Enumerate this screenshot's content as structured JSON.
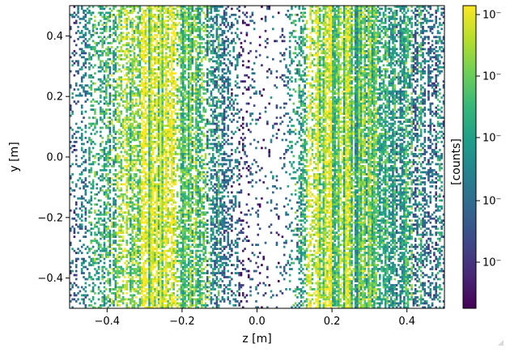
{
  "chart_data": {
    "type": "heatmap",
    "xlabel": "z [m]",
    "ylabel": "y [m]",
    "xlim": [
      -0.5,
      0.5
    ],
    "ylim": [
      -0.5,
      0.5
    ],
    "x_ticks": [
      -0.4,
      -0.2,
      0.0,
      0.2,
      0.4
    ],
    "x_tick_labels": [
      "−0.4",
      "−0.2",
      "0.0",
      "0.2",
      "0.4"
    ],
    "y_ticks": [
      -0.4,
      -0.2,
      0.0,
      0.2,
      0.4
    ],
    "y_tick_labels": [
      "−0.4",
      "−0.2",
      "0.0",
      "0.2",
      "0.4"
    ],
    "grid": false,
    "colormap": "viridis",
    "colorscale": "log",
    "colorbar": {
      "label": "[counts]",
      "tick_labels": [
        "10⁻",
        "10⁻",
        "10⁻",
        "10⁻",
        "10⁻"
      ]
    },
    "grid_bins": [
      200,
      150
    ],
    "column_profile": [
      {
        "z": -0.5,
        "occupancy": 0.22,
        "level": 0.35
      },
      {
        "z": -0.46,
        "occupancy": 0.26,
        "level": 0.45
      },
      {
        "z": -0.42,
        "occupancy": 0.32,
        "level": 0.6
      },
      {
        "z": -0.38,
        "occupancy": 0.4,
        "level": 0.72
      },
      {
        "z": -0.34,
        "occupancy": 0.55,
        "level": 0.82
      },
      {
        "z": -0.3,
        "occupancy": 0.7,
        "level": 0.9
      },
      {
        "z": -0.26,
        "occupancy": 0.72,
        "level": 0.88
      },
      {
        "z": -0.22,
        "occupancy": 0.72,
        "level": 0.84
      },
      {
        "z": -0.18,
        "occupancy": 0.62,
        "level": 0.74
      },
      {
        "z": -0.14,
        "occupancy": 0.52,
        "level": 0.6
      },
      {
        "z": -0.1,
        "occupancy": 0.45,
        "level": 0.45
      },
      {
        "z": -0.06,
        "occupancy": 0.3,
        "level": 0.3
      },
      {
        "z": -0.02,
        "occupancy": 0.12,
        "level": 0.2
      },
      {
        "z": 0.02,
        "occupancy": 0.04,
        "level": 0.15
      },
      {
        "z": 0.06,
        "occupancy": 0.07,
        "level": 0.22
      },
      {
        "z": 0.1,
        "occupancy": 0.2,
        "level": 0.45
      },
      {
        "z": 0.14,
        "occupancy": 0.55,
        "level": 0.88
      },
      {
        "z": 0.18,
        "occupancy": 0.75,
        "level": 0.86
      },
      {
        "z": 0.22,
        "occupancy": 0.8,
        "level": 0.8
      },
      {
        "z": 0.26,
        "occupancy": 0.8,
        "level": 0.74
      },
      {
        "z": 0.3,
        "occupancy": 0.76,
        "level": 0.68
      },
      {
        "z": 0.34,
        "occupancy": 0.7,
        "level": 0.6
      },
      {
        "z": 0.38,
        "occupancy": 0.6,
        "level": 0.55
      },
      {
        "z": 0.42,
        "occupancy": 0.5,
        "level": 0.5
      },
      {
        "z": 0.46,
        "occupancy": 0.42,
        "level": 0.45
      },
      {
        "z": 0.5,
        "occupancy": 0.36,
        "level": 0.4
      }
    ]
  }
}
